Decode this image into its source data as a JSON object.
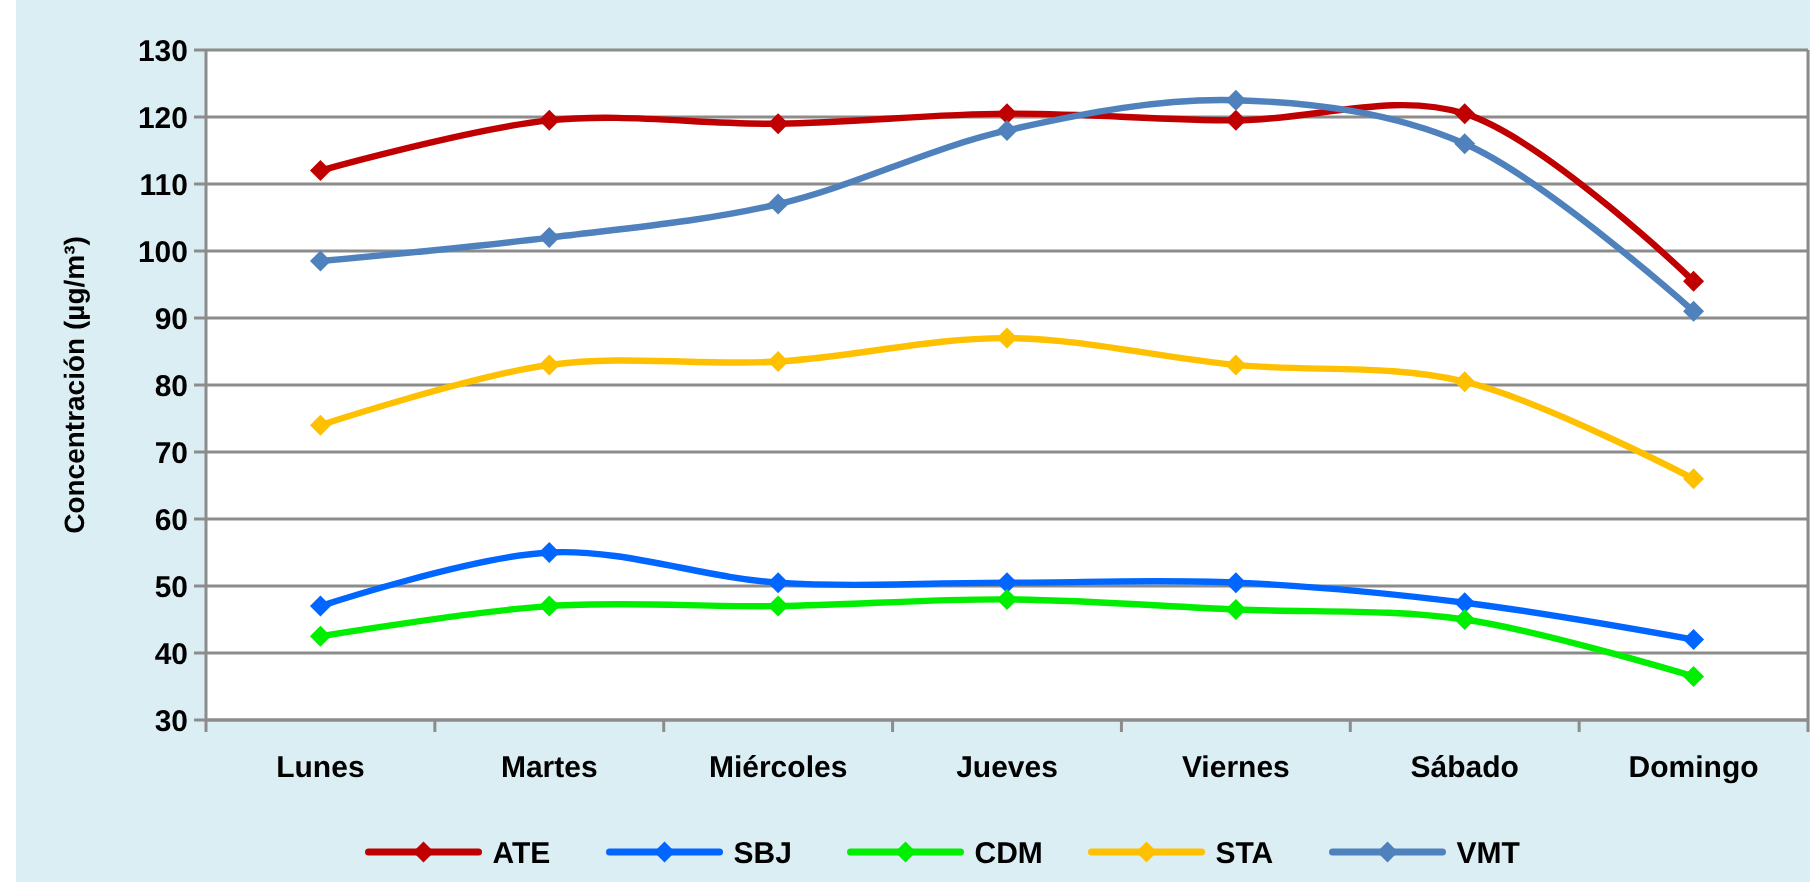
{
  "chart_data": {
    "type": "line",
    "ylabel": "Concentración (µg/m³)",
    "categories": [
      "Lunes",
      "Martes",
      "Miércoles",
      "Jueves",
      "Viernes",
      "Sábado",
      "Domingo"
    ],
    "series": [
      {
        "name": "ATE",
        "color": "#c00000",
        "values": [
          112,
          119.5,
          119,
          120.5,
          119.5,
          120.5,
          95.5
        ]
      },
      {
        "name": "SBJ",
        "color": "#0066ff",
        "values": [
          47,
          55,
          50.5,
          50.5,
          50.5,
          47.5,
          42
        ]
      },
      {
        "name": "CDM",
        "color": "#00ee00",
        "values": [
          42.5,
          47,
          47,
          48,
          46.5,
          45,
          36.5
        ]
      },
      {
        "name": "STA",
        "color": "#ffc000",
        "values": [
          74,
          83,
          83.5,
          87,
          83,
          80.5,
          66
        ]
      },
      {
        "name": "VMT",
        "color": "#4f81bd",
        "values": [
          98.5,
          102,
          107,
          118,
          122.5,
          116,
          91
        ]
      }
    ],
    "ylim": [
      30,
      130
    ],
    "yticks": [
      30,
      40,
      50,
      60,
      70,
      80,
      90,
      100,
      110,
      120,
      130
    ],
    "grid": "y",
    "legend": "bottom",
    "marker": "diamond",
    "line_style": "solid"
  }
}
